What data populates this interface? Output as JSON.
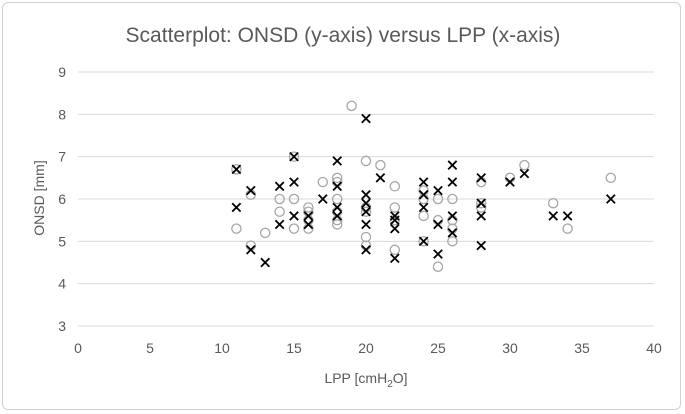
{
  "chart_data": {
    "type": "scatter",
    "title": "Scatterplot: ONSD (y-axis) versus LPP (x-axis)",
    "xlabel": "LPP [cmH2O]",
    "xlabel_main": "LPP [cmH",
    "xlabel_sub": "2",
    "xlabel_end": "O]",
    "ylabel": "ONSD [mm]",
    "xlim": [
      0,
      40
    ],
    "ylim": [
      3,
      9
    ],
    "xticks": [
      0,
      5,
      10,
      15,
      20,
      25,
      30,
      35,
      40
    ],
    "yticks": [
      3,
      4,
      5,
      6,
      7,
      8,
      9
    ],
    "grid": "horizontal",
    "series": [
      {
        "marker": "circle",
        "color": "#a6a6a6",
        "points": [
          [
            11,
            5.3
          ],
          [
            11,
            6.7
          ],
          [
            12,
            4.9
          ],
          [
            12,
            6.1
          ],
          [
            13,
            5.2
          ],
          [
            14,
            5.7
          ],
          [
            14,
            6.0
          ],
          [
            15,
            5.3
          ],
          [
            15,
            6.0
          ],
          [
            15,
            7.0
          ],
          [
            16,
            5.3
          ],
          [
            16,
            5.5
          ],
          [
            16,
            5.7
          ],
          [
            16,
            5.8
          ],
          [
            17,
            6.4
          ],
          [
            18,
            5.4
          ],
          [
            18,
            5.5
          ],
          [
            18,
            5.7
          ],
          [
            18,
            6.0
          ],
          [
            18,
            6.4
          ],
          [
            18,
            6.5
          ],
          [
            19,
            8.2
          ],
          [
            20,
            4.9
          ],
          [
            20,
            5.1
          ],
          [
            20,
            5.7
          ],
          [
            20,
            5.8
          ],
          [
            20,
            6.9
          ],
          [
            21,
            6.8
          ],
          [
            22,
            4.8
          ],
          [
            22,
            5.5
          ],
          [
            22,
            5.8
          ],
          [
            22,
            6.3
          ],
          [
            24,
            5.0
          ],
          [
            24,
            5.6
          ],
          [
            24,
            6.0
          ],
          [
            24,
            6.2
          ],
          [
            25,
            4.4
          ],
          [
            25,
            5.5
          ],
          [
            25,
            6.0
          ],
          [
            26,
            5.0
          ],
          [
            26,
            5.3
          ],
          [
            26,
            5.5
          ],
          [
            26,
            6.0
          ],
          [
            28,
            5.8
          ],
          [
            28,
            5.9
          ],
          [
            28,
            6.4
          ],
          [
            30,
            6.5
          ],
          [
            31,
            6.8
          ],
          [
            33,
            5.9
          ],
          [
            34,
            5.3
          ],
          [
            37,
            6.5
          ]
        ]
      },
      {
        "marker": "cross",
        "color": "#000000",
        "points": [
          [
            11,
            5.8
          ],
          [
            11,
            6.7
          ],
          [
            12,
            4.8
          ],
          [
            12,
            6.2
          ],
          [
            13,
            4.5
          ],
          [
            14,
            5.4
          ],
          [
            14,
            6.3
          ],
          [
            15,
            5.6
          ],
          [
            15,
            6.4
          ],
          [
            15,
            7.0
          ],
          [
            16,
            5.4
          ],
          [
            16,
            5.6
          ],
          [
            17,
            6.0
          ],
          [
            18,
            5.6
          ],
          [
            18,
            5.8
          ],
          [
            18,
            6.3
          ],
          [
            18,
            6.9
          ],
          [
            20,
            4.8
          ],
          [
            20,
            5.4
          ],
          [
            20,
            5.7
          ],
          [
            20,
            5.9
          ],
          [
            20,
            6.1
          ],
          [
            20,
            7.9
          ],
          [
            21,
            6.5
          ],
          [
            22,
            4.6
          ],
          [
            22,
            5.3
          ],
          [
            22,
            5.5
          ],
          [
            22,
            5.6
          ],
          [
            24,
            5.0
          ],
          [
            24,
            5.8
          ],
          [
            24,
            6.1
          ],
          [
            24,
            6.4
          ],
          [
            25,
            4.7
          ],
          [
            25,
            5.4
          ],
          [
            25,
            6.2
          ],
          [
            26,
            5.2
          ],
          [
            26,
            5.6
          ],
          [
            26,
            6.4
          ],
          [
            26,
            6.8
          ],
          [
            28,
            4.9
          ],
          [
            28,
            5.6
          ],
          [
            28,
            5.9
          ],
          [
            28,
            6.5
          ],
          [
            30,
            6.4
          ],
          [
            31,
            6.6
          ],
          [
            33,
            5.6
          ],
          [
            34,
            5.6
          ],
          [
            37,
            6.0
          ]
        ]
      }
    ]
  }
}
